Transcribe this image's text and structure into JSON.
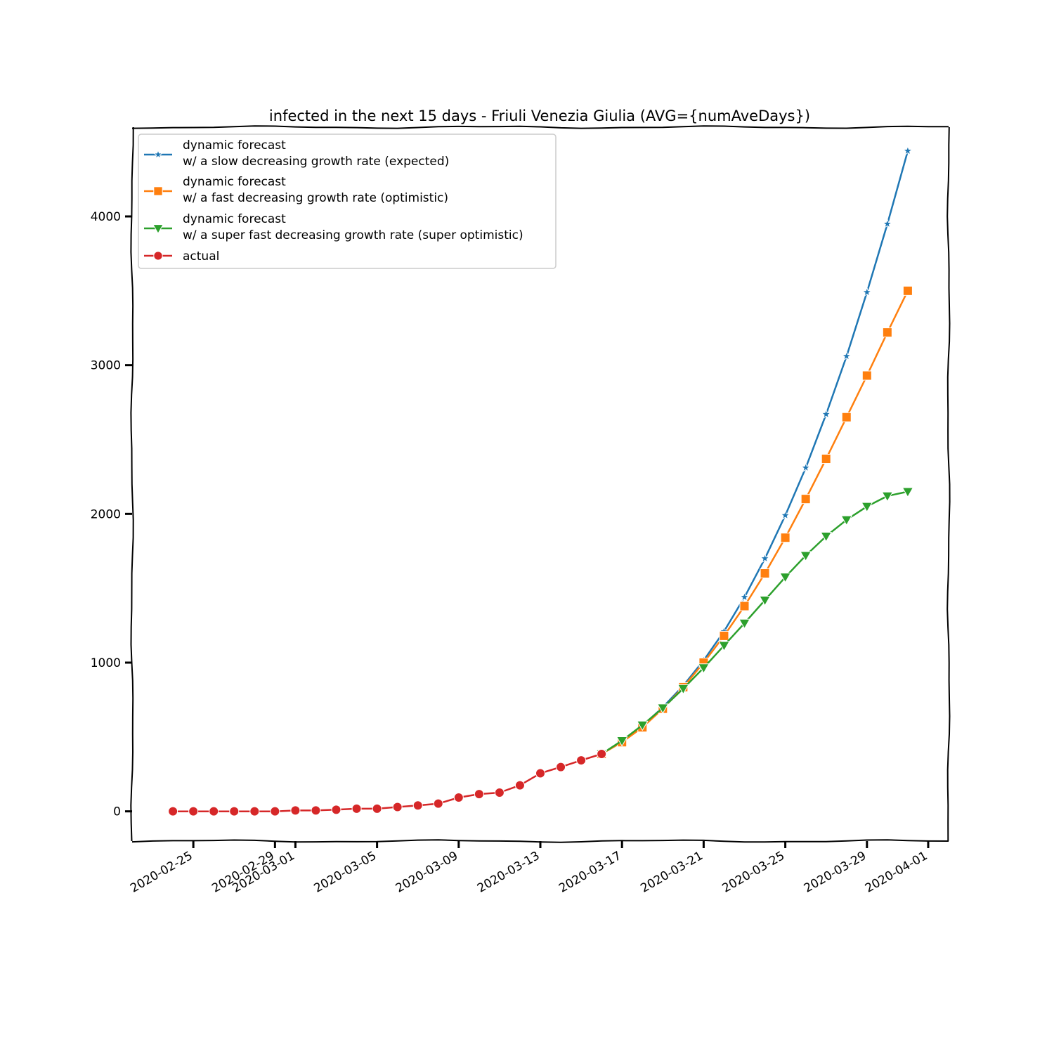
{
  "chart_data": {
    "type": "line",
    "title": "infected in the next 15 days - Friuli Venezia Giulia (AVG={numAveDays})",
    "xlabel": "",
    "ylabel": "",
    "x_type": "date",
    "xlim": [
      "2020-02-22",
      "2020-04-02"
    ],
    "ylim": [
      -200,
      4600
    ],
    "x_ticks": [
      "2020-02-25",
      "2020-02-29",
      "2020-03-01",
      "2020-03-05",
      "2020-03-09",
      "2020-03-13",
      "2020-03-17",
      "2020-03-21",
      "2020-03-25",
      "2020-03-29",
      "2020-04-01"
    ],
    "y_ticks": [
      0,
      1000,
      2000,
      3000,
      4000
    ],
    "grid": false,
    "legend_position": "top-left",
    "series": [
      {
        "name": "dynamic forecast\nw/ a slow decreasing growth rate (expected)",
        "color": "#1f77b4",
        "marker": "star",
        "x": [
          "2020-03-16",
          "2020-03-17",
          "2020-03-18",
          "2020-03-19",
          "2020-03-20",
          "2020-03-21",
          "2020-03-22",
          "2020-03-23",
          "2020-03-24",
          "2020-03-25",
          "2020-03-26",
          "2020-03-27",
          "2020-03-28",
          "2020-03-29",
          "2020-03-30",
          "2020-03-31"
        ],
        "y": [
          386,
          470,
          575,
          700,
          845,
          1015,
          1210,
          1440,
          1700,
          1990,
          2310,
          2670,
          3060,
          3490,
          3950,
          4440
        ]
      },
      {
        "name": "dynamic forecast\nw/ a fast decreasing growth rate (optimistic)",
        "color": "#ff7f0e",
        "marker": "square",
        "x": [
          "2020-03-16",
          "2020-03-17",
          "2020-03-18",
          "2020-03-19",
          "2020-03-20",
          "2020-03-21",
          "2020-03-22",
          "2020-03-23",
          "2020-03-24",
          "2020-03-25",
          "2020-03-26",
          "2020-03-27",
          "2020-03-28",
          "2020-03-29",
          "2020-03-30",
          "2020-03-31"
        ],
        "y": [
          386,
          465,
          565,
          690,
          835,
          1000,
          1180,
          1380,
          1600,
          1840,
          2100,
          2370,
          2650,
          2930,
          3220,
          3500
        ]
      },
      {
        "name": "dynamic forecast\nw/ a super fast decreasing growth rate (super optimistic)",
        "color": "#2ca02c",
        "marker": "triangle-down",
        "x": [
          "2020-03-16",
          "2020-03-17",
          "2020-03-18",
          "2020-03-19",
          "2020-03-20",
          "2020-03-21",
          "2020-03-22",
          "2020-03-23",
          "2020-03-24",
          "2020-03-25",
          "2020-03-26",
          "2020-03-27",
          "2020-03-28",
          "2020-03-29",
          "2020-03-30",
          "2020-03-31"
        ],
        "y": [
          386,
          475,
          580,
          695,
          825,
          965,
          1115,
          1265,
          1420,
          1575,
          1720,
          1850,
          1960,
          2050,
          2120,
          2150
        ]
      },
      {
        "name": "actual",
        "color": "#d62728",
        "marker": "circle",
        "x": [
          "2020-02-24",
          "2020-02-25",
          "2020-02-26",
          "2020-02-27",
          "2020-02-28",
          "2020-02-29",
          "2020-03-01",
          "2020-03-02",
          "2020-03-03",
          "2020-03-04",
          "2020-03-05",
          "2020-03-06",
          "2020-03-07",
          "2020-03-08",
          "2020-03-09",
          "2020-03-10",
          "2020-03-11",
          "2020-03-12",
          "2020-03-13",
          "2020-03-14",
          "2020-03-15",
          "2020-03-16"
        ],
        "y": [
          0,
          0,
          0,
          0,
          0,
          0,
          6,
          6,
          11,
          18,
          18,
          29,
          40,
          52,
          93,
          116,
          126,
          175,
          256,
          298,
          343,
          386
        ]
      }
    ]
  }
}
